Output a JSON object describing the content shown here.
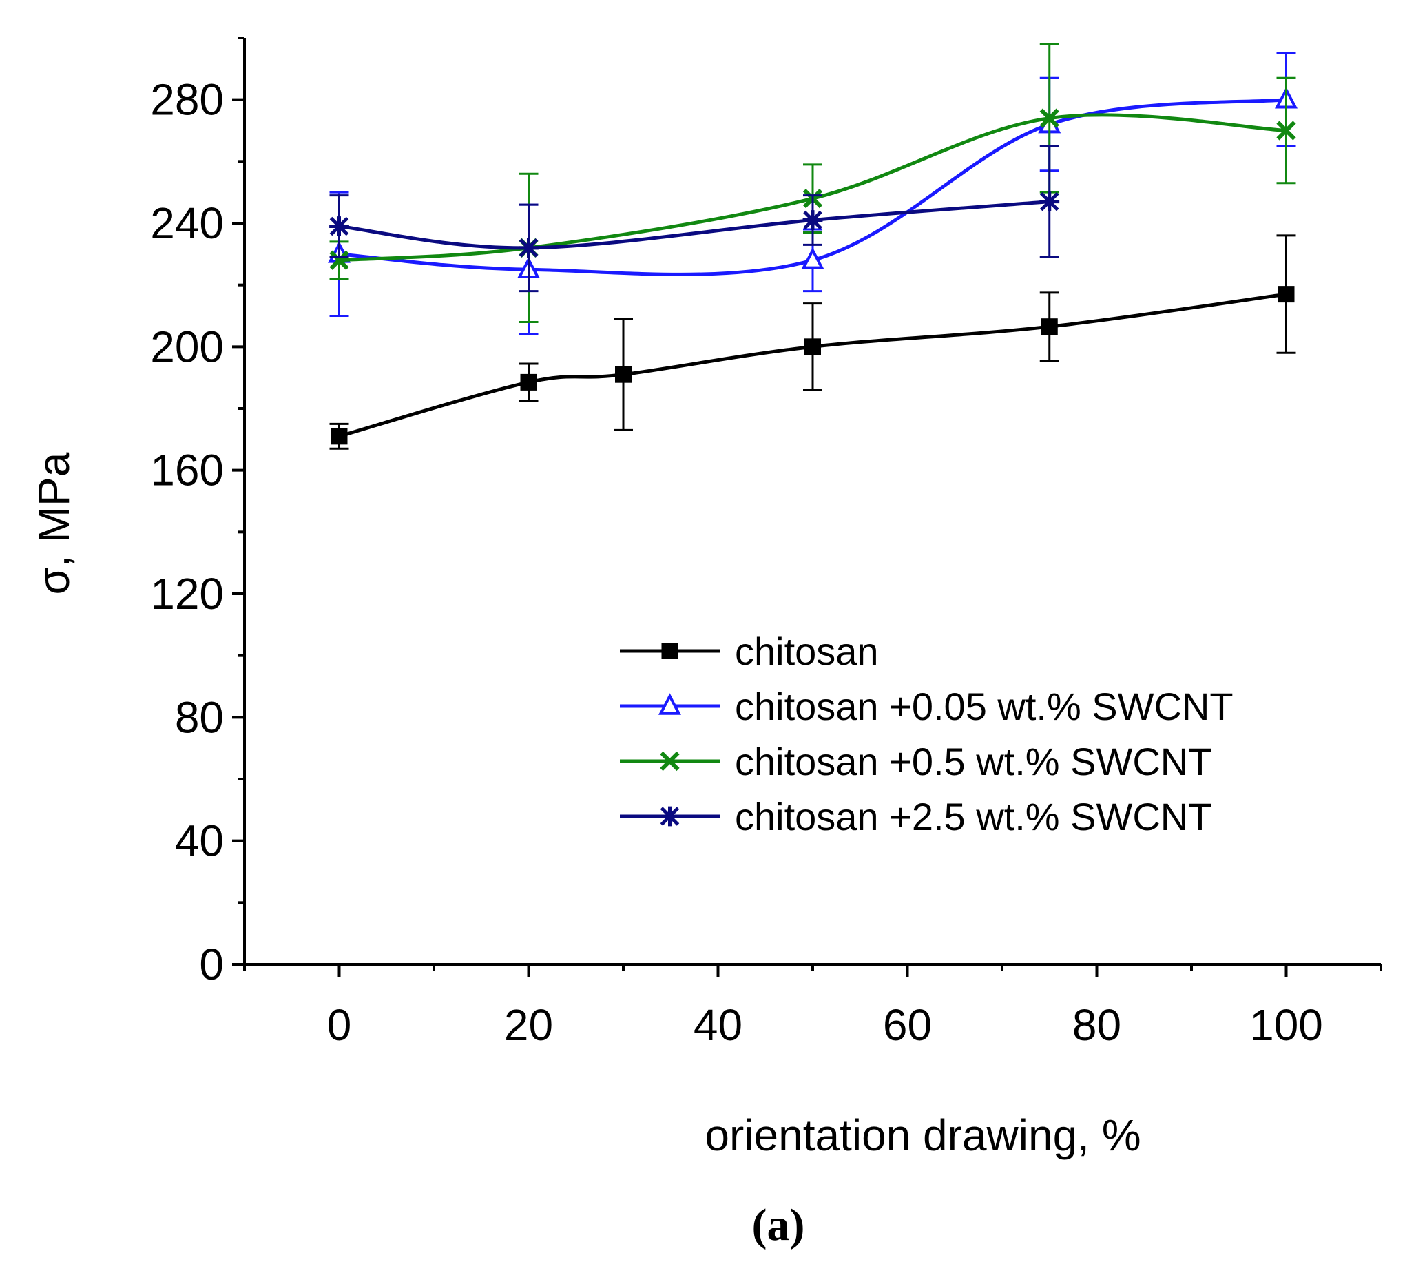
{
  "chart_data": {
    "type": "line",
    "panel_label": "(a)",
    "xlabel": "orientation drawing, %",
    "ylabel": "σ, MPa",
    "xlim": [
      -10,
      110
    ],
    "ylim": [
      0,
      300
    ],
    "x_ticks": [
      0,
      20,
      40,
      60,
      80,
      100
    ],
    "y_ticks": [
      0,
      40,
      80,
      120,
      160,
      200,
      240,
      280
    ],
    "legend_position": "middle-right",
    "series": [
      {
        "name": "chitosan",
        "color": "#000000",
        "marker": "filled-square",
        "x": [
          0,
          20,
          30,
          50,
          75,
          100
        ],
        "y": [
          171,
          188.5,
          191,
          200,
          206.5,
          217
        ],
        "err": [
          4,
          6,
          18,
          14,
          11,
          19
        ]
      },
      {
        "name": "chitosan +0.05 wt.% SWCNT",
        "color": "#1a1aff",
        "marker": "open-triangle",
        "x": [
          0,
          20,
          50,
          75,
          100
        ],
        "y": [
          230,
          225,
          228,
          272,
          280
        ],
        "err": [
          20,
          21,
          10,
          15,
          15
        ]
      },
      {
        "name": "chitosan +0.5 wt.% SWCNT",
        "color": "#118811",
        "marker": "x-cross",
        "x": [
          0,
          20,
          50,
          75,
          100
        ],
        "y": [
          228,
          232,
          248,
          274,
          270
        ],
        "err": [
          6,
          24,
          11,
          24,
          17
        ]
      },
      {
        "name": "chitosan +2.5 wt.% SWCNT",
        "color": "#0a0a80",
        "marker": "asterisk",
        "x": [
          0,
          20,
          50,
          75
        ],
        "y": [
          239,
          232,
          241,
          247
        ],
        "err": [
          10,
          14,
          8,
          18
        ]
      }
    ]
  }
}
